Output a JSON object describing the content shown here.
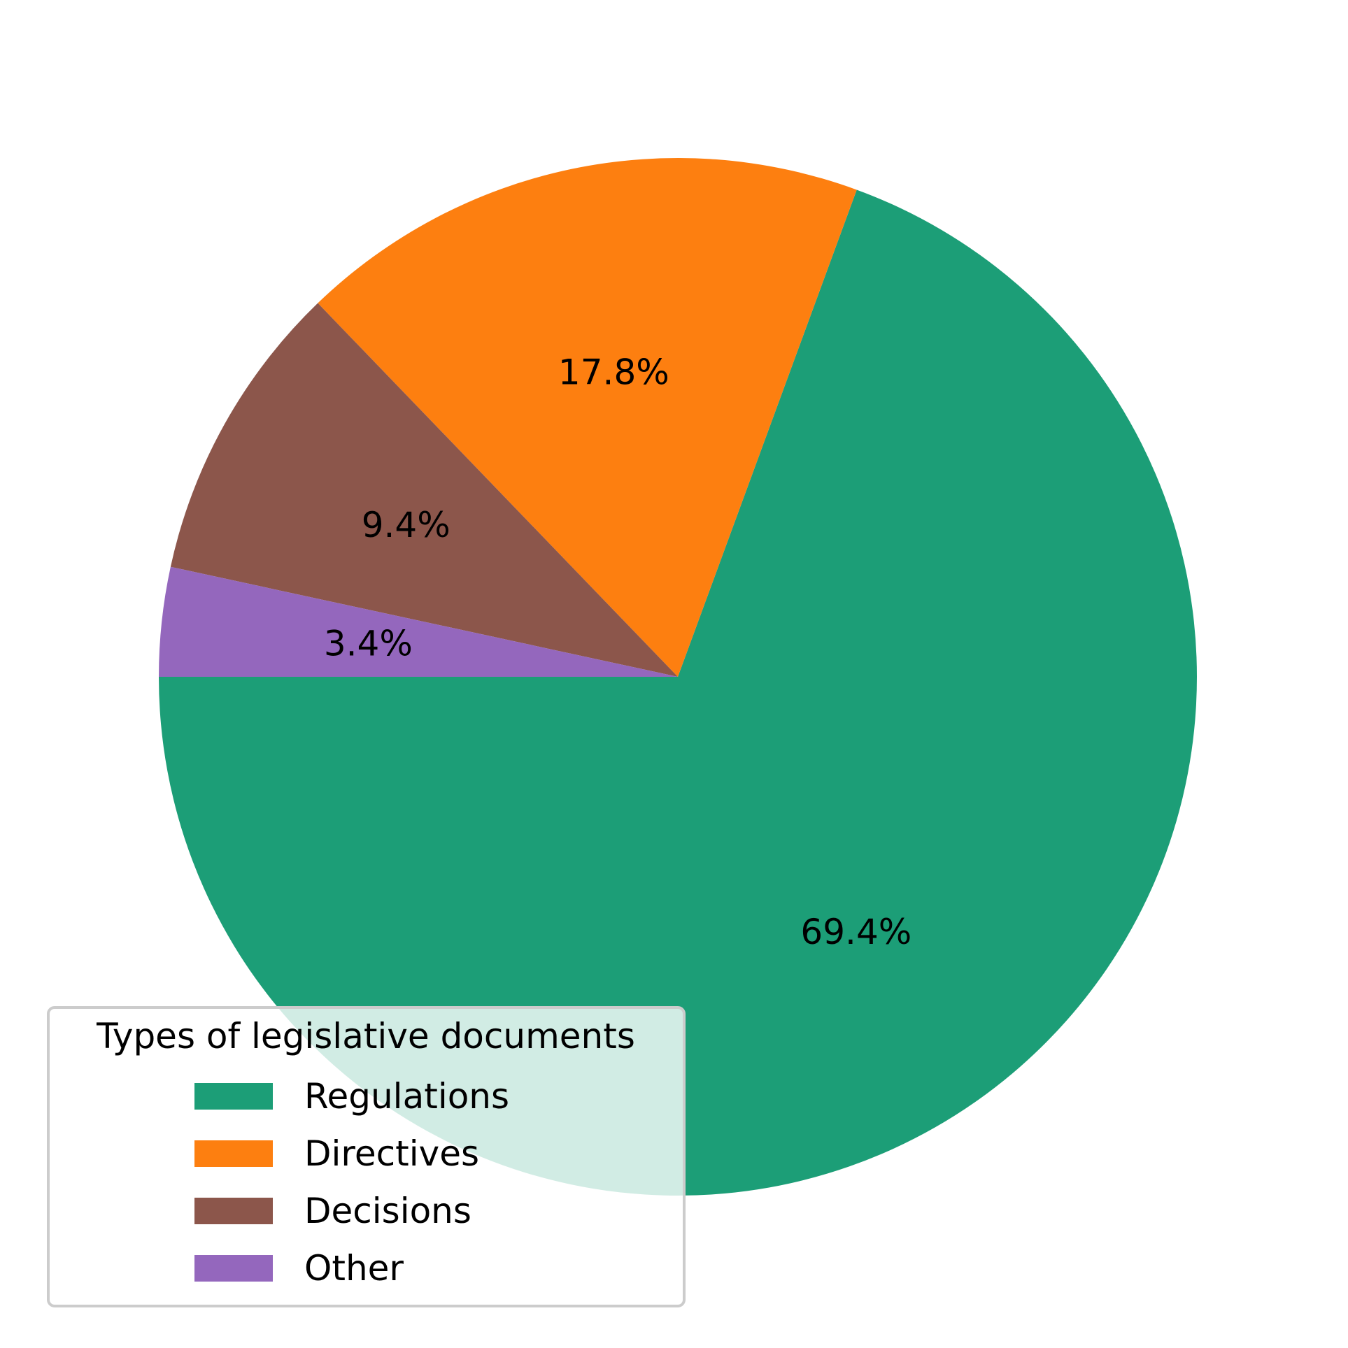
{
  "chart_data": {
    "type": "pie",
    "title": "",
    "start_angle_deg": 180,
    "direction": "counterclockwise",
    "slices": [
      {
        "label": "Regulations",
        "value": 69.4,
        "display": "69.4%",
        "color": "#1c9e77"
      },
      {
        "label": "Directives",
        "value": 17.8,
        "display": "17.8%",
        "color": "#fd7f10"
      },
      {
        "label": "Decisions",
        "value": 9.4,
        "display": "9.4%",
        "color": "#8c564b"
      },
      {
        "label": "Other",
        "value": 3.4,
        "display": "3.4%",
        "color": "#9467bd"
      }
    ],
    "legend": {
      "title": "Types of legislative documents",
      "placement": "lower-left",
      "entries": [
        "Regulations",
        "Directives",
        "Decisions",
        "Other"
      ]
    }
  }
}
